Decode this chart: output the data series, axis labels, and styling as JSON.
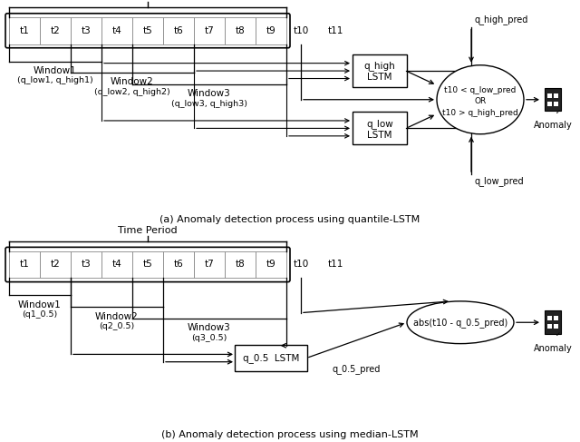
{
  "bg_color": "#ffffff",
  "title_a": "(a) Anomaly detection process using quantile-LSTM",
  "title_b": "(b) Anomaly detection process using median-LSTM",
  "time_labels": [
    "t1",
    "t2",
    "t3",
    "t4",
    "t5",
    "t6",
    "t7",
    "t8",
    "t9"
  ],
  "time_period_label": "Time Period",
  "window_labels_a": [
    [
      "Window1",
      "(q_low1, q_high1)"
    ],
    [
      "Window2",
      "(q_low2, q_high2)"
    ],
    [
      "Window3",
      "(q_low3, q_high3)"
    ]
  ],
  "window_labels_b": [
    [
      "Window1",
      "(q1_0.5)"
    ],
    [
      "Window2",
      "(q2_0.5)"
    ],
    [
      "Window3",
      "(q3_0.5)"
    ]
  ],
  "lstm_high_label": [
    "q_high",
    "LSTM"
  ],
  "lstm_low_label": [
    "q_low",
    "LSTM"
  ],
  "lstm_b_label": "q_0.5  LSTM",
  "ellipse_text_a": "t10 < q_low_pred\nOR\nt10 > q_high_pred",
  "ellipse_text_b": "abs(t10 - q_0.5_pred)",
  "arrow_label_high": "q_high_pred",
  "arrow_label_low": "q_low_pred",
  "arrow_label_b": "q_0.5_pred",
  "anomaly_label": "Anomaly"
}
